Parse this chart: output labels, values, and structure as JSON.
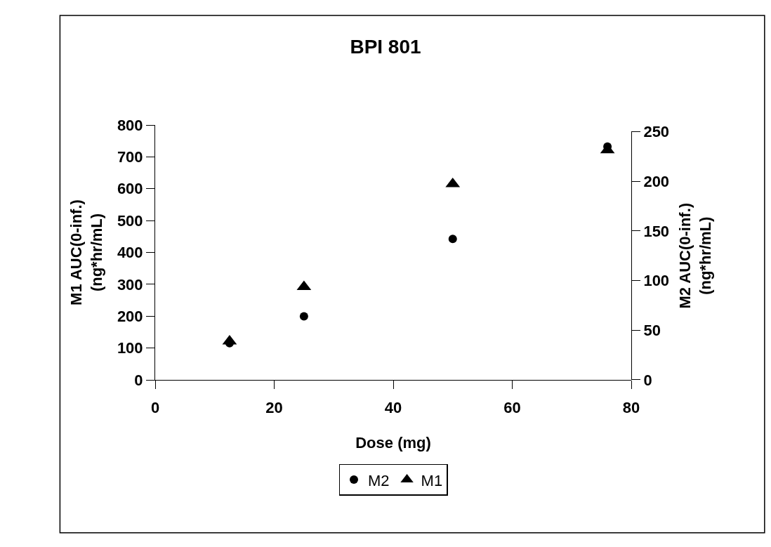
{
  "chart_data": {
    "type": "scatter",
    "title": "BPI 801",
    "xlabel": "Dose (mg)",
    "ylabel": "M1 AUC(0-inf.)\n(ng*hr/mL)",
    "y2label": "M2 AUC(0-inf.)\n(ng*hr/mL)",
    "xlim": [
      0,
      80
    ],
    "xticks": [
      0,
      20,
      40,
      60,
      80
    ],
    "ylim": [
      0,
      800
    ],
    "yticks": [
      0,
      100,
      200,
      300,
      400,
      500,
      600,
      700,
      800
    ],
    "y2lim": [
      0,
      250
    ],
    "y2ticks": [
      0,
      50,
      100,
      150,
      200,
      250
    ],
    "grid": false,
    "legend": "bottom",
    "series": [
      {
        "name": "M2",
        "color": "#000000",
        "marker": "circle",
        "axis": "y2",
        "x": [
          12.5,
          25,
          50,
          76
        ],
        "values": [
          37,
          64,
          142,
          235
        ]
      },
      {
        "name": "M1",
        "color": "#000000",
        "marker": "triangle",
        "axis": "y",
        "x": [
          12.5,
          25,
          50,
          76
        ],
        "values": [
          121,
          292,
          615,
          721
        ]
      }
    ]
  }
}
